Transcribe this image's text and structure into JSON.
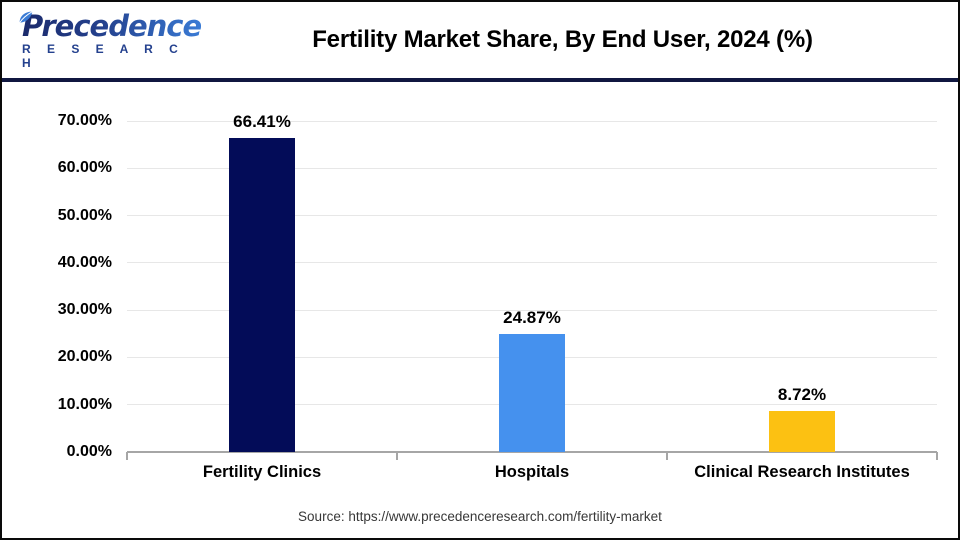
{
  "header": {
    "logo_line1": "Precedence",
    "logo_line2": "R E S E A R C H",
    "title": "Fertility Market Share, By End User, 2024 (%)"
  },
  "chart_data": {
    "type": "bar",
    "title": "Fertility Market Share, By End User, 2024 (%)",
    "categories": [
      "Fertility Clinics",
      "Hospitals",
      "Clinical Research Institutes"
    ],
    "values": [
      66.41,
      24.87,
      8.72
    ],
    "value_labels": [
      "66.41%",
      "24.87%",
      "8.72%"
    ],
    "xlabel": "",
    "ylabel": "",
    "ylim": [
      0,
      70
    ],
    "ytick_step": 10,
    "ytick_labels": [
      "0.00%",
      "10.00%",
      "20.00%",
      "30.00%",
      "40.00%",
      "50.00%",
      "60.00%",
      "70.00%"
    ],
    "grid": true,
    "legend": false,
    "bar_colors": [
      "#030c58",
      "#4591ee",
      "#fcc112"
    ]
  },
  "colors": {
    "navy_accent": "#101740",
    "logo_navy": "#1b2a6b",
    "logo_blue": "#3a7bd5",
    "grid": "#e7e7e7",
    "axis": "#a6a6a6"
  },
  "footer": {
    "source": "Source: https://www.precedenceresearch.com/fertility-market"
  }
}
